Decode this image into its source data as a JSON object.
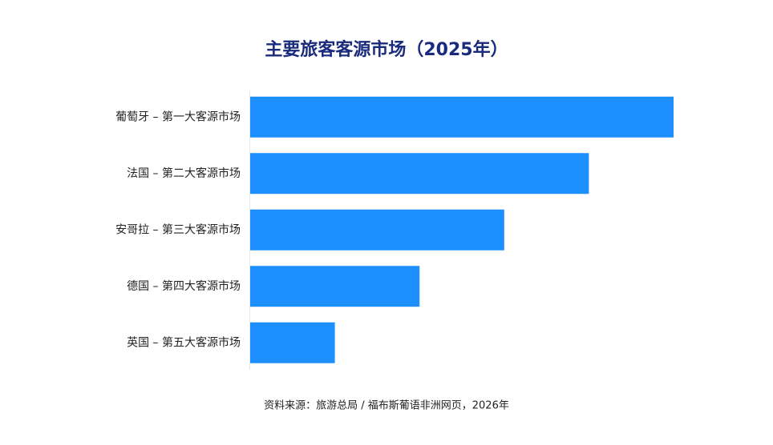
{
  "chart_data": {
    "type": "bar",
    "orientation": "horizontal",
    "title": "主要旅客客源市场（2025年）",
    "categories": [
      "葡萄牙 – 第一大客源市场",
      "法国 – 第二大客源市场",
      "安哥拉 – 第三大客源市场",
      "德国 – 第四大客源市场",
      "英国 – 第五大客源市场"
    ],
    "values": [
      5,
      4,
      3,
      2,
      1
    ],
    "color": "#1e8fff",
    "source": "资料来源：旅游总局 / 福布斯葡语非洲网页，2026年"
  }
}
